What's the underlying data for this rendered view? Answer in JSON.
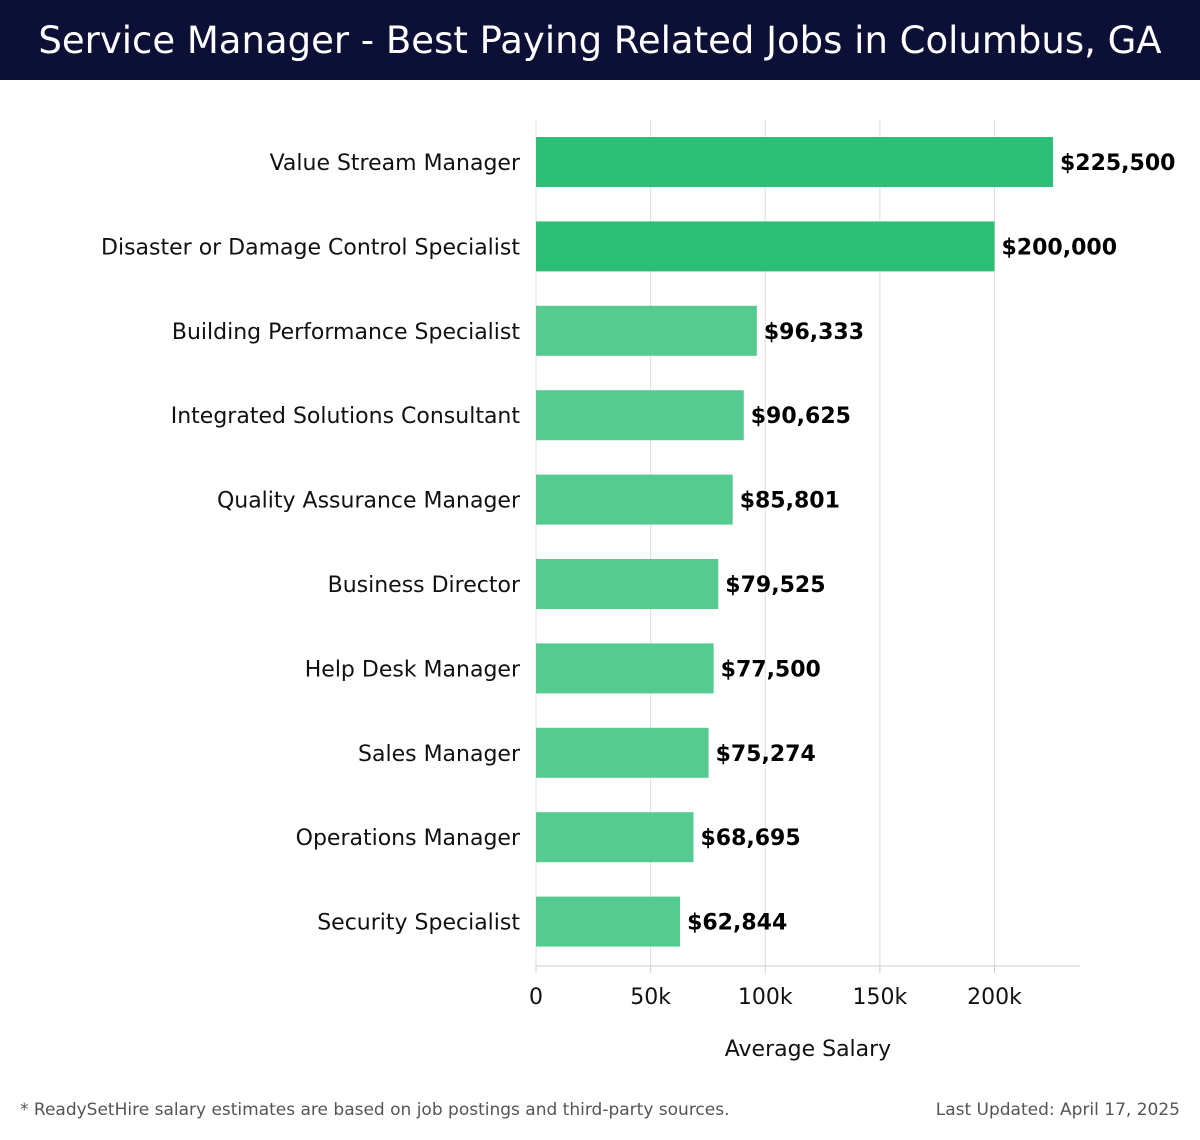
{
  "header": {
    "title": "Service Manager - Best Paying Related Jobs in Columbus, GA"
  },
  "chart_data": {
    "type": "bar",
    "orientation": "horizontal",
    "categories": [
      "Value Stream Manager",
      "Disaster or Damage Control Specialist",
      "Building Performance Specialist",
      "Integrated Solutions Consultant",
      "Quality Assurance Manager",
      "Business Director",
      "Help Desk Manager",
      "Sales Manager",
      "Operations Manager",
      "Security Specialist"
    ],
    "values": [
      225500,
      200000,
      96333,
      90625,
      85801,
      79525,
      77500,
      75274,
      68695,
      62844
    ],
    "value_labels": [
      "$225,500",
      "$200,000",
      "$96,333",
      "$90,625",
      "$85,801",
      "$79,525",
      "$77,500",
      "$75,274",
      "$68,695",
      "$62,844"
    ],
    "xlabel": "Average Salary",
    "ylabel": "",
    "xlim": [
      0,
      237500
    ],
    "xticks": [
      0,
      50000,
      100000,
      150000,
      200000
    ],
    "xtick_labels": [
      "0",
      "50k",
      "100k",
      "150k",
      "200k"
    ],
    "grid": "vertical",
    "colors": {
      "highlight": "#2bbf78",
      "normal": "#55cb92",
      "grid": "#dddddd",
      "axis": "#cccccc"
    },
    "highlight_count": 2
  },
  "footer": {
    "note": "* ReadySetHire salary estimates are based on job postings and third-party sources.",
    "updated": "Last Updated: April 17, 2025"
  }
}
